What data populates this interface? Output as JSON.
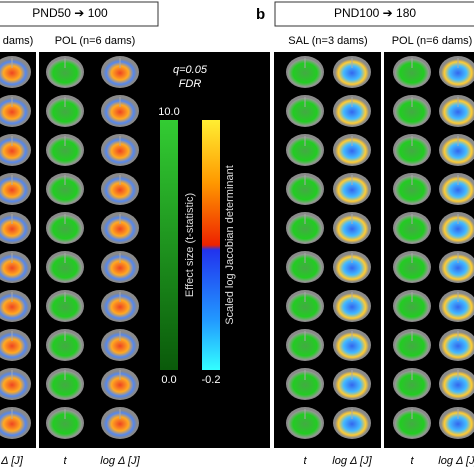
{
  "panel_a": {
    "title": "PND50 ➔ 100",
    "column_headers": [
      "dams)",
      "POL (n=6 dams)"
    ],
    "column_labels": [
      "Δ [J]",
      "t",
      "log Δ [J]"
    ],
    "annotation_q": "q=0.05",
    "annotation_fdr": "FDR"
  },
  "legend": {
    "left_label": "Effect size (t-statistic)",
    "left_max": "10.0",
    "left_min": "0.0",
    "right_label": "Scaled log Jacobian determinant",
    "right_min": "-0.2"
  },
  "panel_b": {
    "letter": "b",
    "title": "PND100 ➔ 180",
    "column_headers": [
      "SAL (n=3 dams)",
      "POL (n=6 dams)"
    ],
    "column_labels": [
      "t",
      "log Δ [J]",
      "t",
      "log Δ [J]"
    ]
  }
}
